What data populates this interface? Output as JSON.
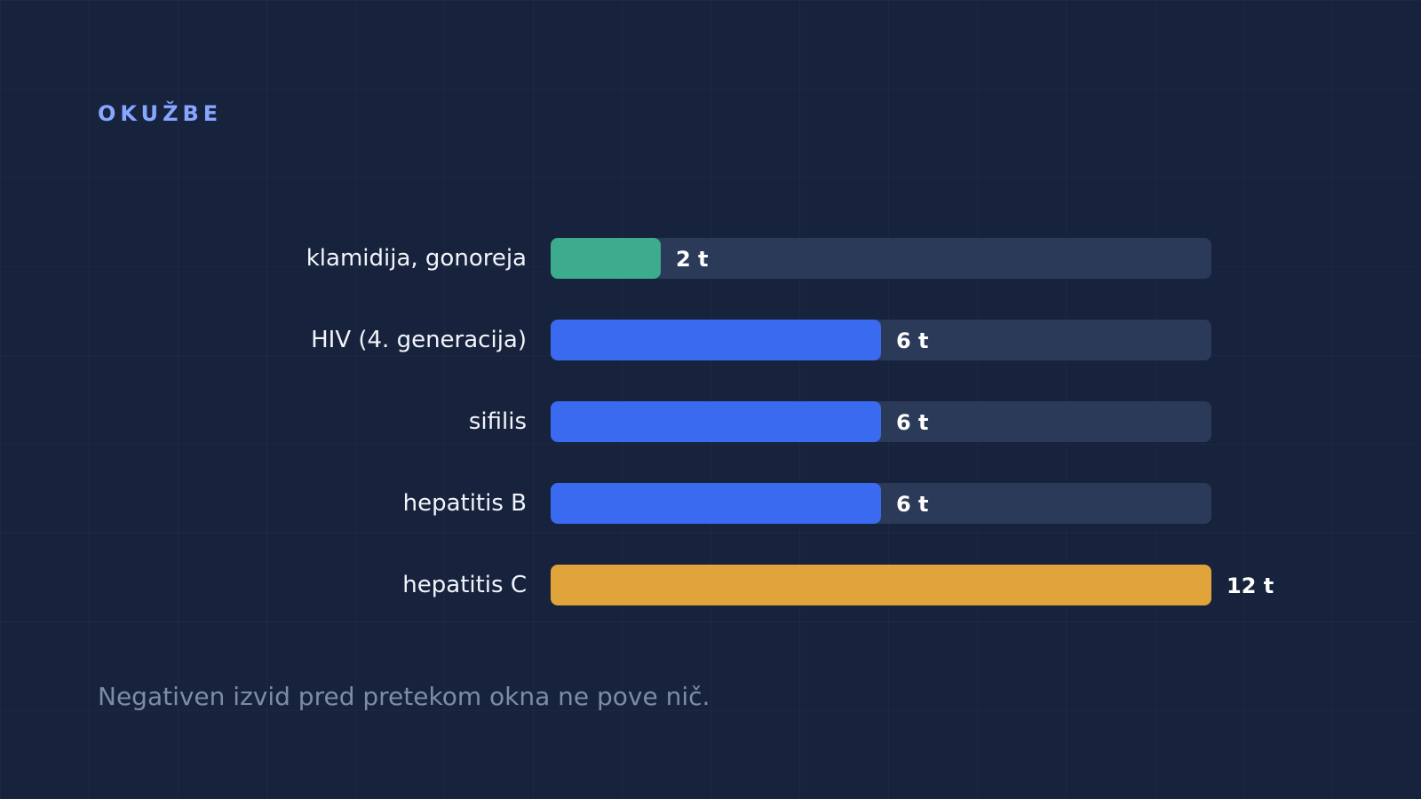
{
  "kicker": "OKUŽBE",
  "note": "Negativen izvid pred pretekom okna ne pove nič.",
  "chart_data": {
    "type": "bar",
    "orientation": "horizontal",
    "unit": "t",
    "categories": [
      "klamidija, gonoreja",
      "HIV (4. generacija)",
      "sifilis",
      "hepatitis B",
      "hepatitis C"
    ],
    "values": [
      2,
      6,
      6,
      6,
      12
    ],
    "value_labels": [
      "2 t",
      "6 t",
      "6 t",
      "6 t",
      "12 t"
    ],
    "xlim": [
      0,
      12
    ],
    "grid": false,
    "legend": "none",
    "colors": [
      "#3dab8e",
      "#3a6af0",
      "#3a6af0",
      "#3a6af0",
      "#e0a43a"
    ],
    "track_color": "#2b3a58"
  }
}
